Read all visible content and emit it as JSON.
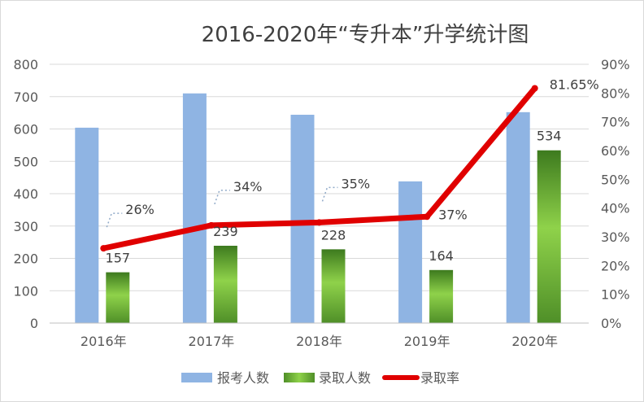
{
  "chart_data": {
    "type": "bar",
    "title": "2016-2020年“专升本”升学统计图",
    "categories": [
      "2016年",
      "2017年",
      "2018年",
      "2019年",
      "2020年"
    ],
    "series": [
      {
        "name": "报考人数",
        "kind": "bar",
        "axis": "left",
        "values": [
          604,
          710,
          644,
          438,
          652
        ],
        "color": "#8fb4e3"
      },
      {
        "name": "录取人数",
        "kind": "bar",
        "axis": "left",
        "values": [
          157,
          239,
          228,
          164,
          534
        ],
        "color": "#5a9e2f",
        "labels": [
          "157",
          "239",
          "228",
          "164",
          "534"
        ]
      },
      {
        "name": "录取率",
        "kind": "line",
        "axis": "right",
        "values": [
          26,
          34,
          35,
          37,
          81.65
        ],
        "color": "#e00000",
        "labels": [
          "26%",
          "34%",
          "35%",
          "37%",
          "81.65%"
        ]
      }
    ],
    "y_left": {
      "lim": [
        0,
        800
      ],
      "ticks": [
        "0",
        "100",
        "200",
        "300",
        "400",
        "500",
        "600",
        "700",
        "800"
      ]
    },
    "y_right": {
      "lim": [
        0,
        90
      ],
      "ticks": [
        "0%",
        "10%",
        "20%",
        "30%",
        "40%",
        "50%",
        "60%",
        "70%",
        "80%",
        "90%"
      ]
    },
    "legend_position": "bottom",
    "grid": true
  }
}
